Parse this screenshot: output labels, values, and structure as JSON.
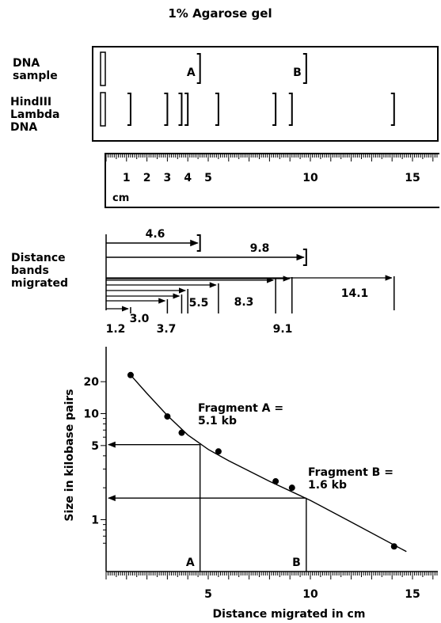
{
  "title": "1% Agarose gel",
  "gel": {
    "row1_label": [
      "DNA",
      "sample"
    ],
    "row2_label": [
      "HindIII",
      "Lambda",
      "DNA"
    ],
    "sample_bands": [
      {
        "label": "A",
        "distance_cm": 4.6
      },
      {
        "label": "B",
        "distance_cm": 9.8
      }
    ],
    "marker_bands_cm": [
      1.2,
      3.0,
      3.7,
      4.0,
      5.5,
      8.3,
      9.1,
      14.1
    ]
  },
  "ruler": {
    "tick_labels": [
      "1",
      "2",
      "3",
      "4",
      "5",
      "10",
      "15"
    ],
    "tick_values": [
      1,
      2,
      3,
      4,
      5,
      10,
      15
    ],
    "unit": "cm"
  },
  "distance": {
    "label": [
      "Distance",
      "bands",
      "migrated"
    ],
    "sample": [
      {
        "value_cm": 4.6,
        "label": "4.6"
      },
      {
        "value_cm": 9.8,
        "label": "9.8"
      }
    ],
    "marker": [
      {
        "value_cm": 1.2,
        "label": "1.2"
      },
      {
        "value_cm": 3.0,
        "label": "3.0"
      },
      {
        "value_cm": 3.7,
        "label": "3.7"
      },
      {
        "value_cm": 4.0,
        "label": ""
      },
      {
        "value_cm": 5.5,
        "label": "5.5"
      },
      {
        "value_cm": 8.3,
        "label": "8.3"
      },
      {
        "value_cm": 9.1,
        "label": "9.1"
      },
      {
        "value_cm": 14.1,
        "label": "14.1"
      }
    ]
  },
  "chart_data": {
    "type": "scatter",
    "xlabel": "Distance migrated in cm",
    "ylabel": "Size in kilobase pairs",
    "xlim": [
      0,
      16
    ],
    "ylim": [
      0.5,
      23
    ],
    "y_scale": "log",
    "x_ticks": [
      5,
      10,
      15
    ],
    "y_ticks": [
      1,
      5,
      10,
      20
    ],
    "points": [
      {
        "x": 1.2,
        "y": 23.1
      },
      {
        "x": 3.0,
        "y": 9.4
      },
      {
        "x": 3.7,
        "y": 6.6
      },
      {
        "x": 5.5,
        "y": 4.4
      },
      {
        "x": 8.3,
        "y": 2.3
      },
      {
        "x": 9.1,
        "y": 2.0
      },
      {
        "x": 14.1,
        "y": 0.56
      }
    ],
    "curve": [
      {
        "x": 1.2,
        "y": 23.1
      },
      {
        "x": 2.0,
        "y": 15.5
      },
      {
        "x": 3.0,
        "y": 9.6
      },
      {
        "x": 4.0,
        "y": 6.3
      },
      {
        "x": 5.0,
        "y": 4.6
      },
      {
        "x": 6.0,
        "y": 3.6
      },
      {
        "x": 8.0,
        "y": 2.3
      },
      {
        "x": 10.0,
        "y": 1.52
      },
      {
        "x": 12.0,
        "y": 0.95
      },
      {
        "x": 14.7,
        "y": 0.5
      }
    ],
    "annotations": [
      {
        "label": "A",
        "x": 4.6,
        "y": 5.1,
        "text": [
          "Fragment A =",
          "5.1 kb"
        ]
      },
      {
        "label": "B",
        "x": 9.8,
        "y": 1.6,
        "text": [
          "Fragment B =",
          "1.6 kb"
        ]
      }
    ],
    "grid": false
  }
}
